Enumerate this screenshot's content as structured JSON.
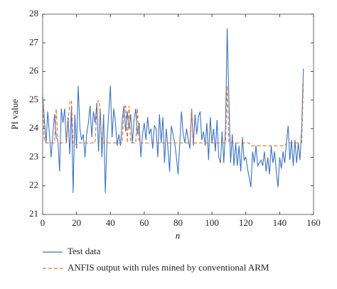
{
  "chart_data": {
    "type": "line",
    "xlabel": "n",
    "ylabel": "PI value",
    "xlim": [
      0,
      160
    ],
    "xticks": [
      0,
      20,
      40,
      60,
      80,
      100,
      120,
      140,
      160
    ],
    "ylim": [
      21,
      28
    ],
    "yticks": [
      21,
      22,
      23,
      24,
      25,
      26,
      27,
      28
    ],
    "x": [
      0,
      1,
      2,
      3,
      4,
      5,
      6,
      7,
      8,
      9,
      10,
      11,
      12,
      13,
      14,
      15,
      16,
      17,
      18,
      19,
      20,
      21,
      22,
      23,
      24,
      25,
      26,
      27,
      28,
      29,
      30,
      31,
      32,
      33,
      34,
      35,
      36,
      37,
      38,
      39,
      40,
      41,
      42,
      43,
      44,
      45,
      46,
      47,
      48,
      49,
      50,
      51,
      52,
      53,
      54,
      55,
      56,
      57,
      58,
      59,
      60,
      61,
      62,
      63,
      64,
      65,
      66,
      67,
      68,
      69,
      70,
      71,
      72,
      73,
      74,
      75,
      76,
      77,
      78,
      79,
      80,
      81,
      82,
      83,
      84,
      85,
      86,
      87,
      88,
      89,
      90,
      91,
      92,
      93,
      94,
      95,
      96,
      97,
      98,
      99,
      100,
      101,
      102,
      103,
      104,
      105,
      106,
      107,
      108,
      109,
      110,
      111,
      112,
      113,
      114,
      115,
      116,
      117,
      118,
      119,
      120,
      121,
      122,
      123,
      124,
      125,
      126,
      127,
      128,
      129,
      130,
      131,
      132,
      133,
      134,
      135,
      136,
      137,
      138,
      139,
      140,
      141,
      142,
      143,
      144,
      145,
      146,
      147,
      148,
      149,
      150,
      151,
      152,
      153,
      154
    ],
    "series": [
      {
        "name": "Test data",
        "color": "#3b72c4",
        "dash": false,
        "values": [
          25.2,
          24.3,
          23.5,
          24.6,
          23.8,
          23.0,
          23.8,
          24.5,
          23.7,
          23.6,
          22.5,
          24.7,
          24.2,
          24.7,
          23.5,
          24.4,
          23.1,
          24.8,
          21.75,
          24.5,
          23.3,
          25.5,
          24.0,
          23.6,
          23.8,
          23.0,
          23.8,
          24.2,
          24.8,
          23.7,
          24.6,
          24.2,
          24.9,
          23.2,
          24.7,
          23.0,
          24.5,
          21.75,
          23.6,
          24.5,
          25.5,
          23.7,
          24.7,
          24.2,
          23.4,
          23.8,
          23.4,
          24.3,
          24.8,
          23.9,
          24.6,
          24.0,
          24.5,
          23.5,
          24.3,
          24.7,
          23.8,
          24.2,
          23.0,
          23.8,
          24.2,
          23.6,
          24.4,
          23.8,
          24.0,
          23.3,
          24.1,
          24.0,
          23.0,
          24.5,
          23.5,
          24.4,
          22.8,
          24.0,
          23.3,
          22.5,
          24.1,
          23.8,
          23.5,
          23.0,
          22.4,
          23.5,
          24.6,
          23.8,
          23.5,
          24.0,
          23.6,
          23.3,
          24.7,
          23.4,
          24.5,
          23.8,
          24.4,
          24.6,
          23.6,
          23.9,
          23.4,
          24.2,
          22.9,
          24.4,
          23.5,
          24.0,
          23.2,
          24.3,
          23.0,
          22.8,
          23.9,
          22.8,
          24.0,
          27.5,
          25.0,
          22.8,
          23.8,
          22.7,
          23.5,
          22.7,
          23.4,
          22.5,
          23.7,
          22.9,
          23.0,
          22.6,
          22.3,
          21.95,
          23.2,
          22.8,
          23.4,
          22.7,
          22.8,
          22.9,
          22.7,
          23.2,
          22.5,
          23.0,
          22.4,
          23.4,
          22.8,
          23.2,
          22.5,
          21.95,
          23.0,
          22.6,
          23.2,
          22.8,
          23.5,
          24.1,
          22.9,
          23.6,
          22.7,
          23.6,
          22.8,
          23.5,
          22.9,
          24.0,
          26.1
        ]
      },
      {
        "name": "ANFIS output with rules mined by conventional ARM",
        "color": "#e8702a",
        "dash": true,
        "values": [
          24.9,
          23.6,
          23.5,
          23.5,
          23.5,
          23.5,
          23.5,
          23.5,
          24.7,
          23.5,
          23.5,
          23.5,
          23.5,
          23.5,
          23.5,
          24.2,
          24.9,
          25.0,
          23.5,
          23.5,
          23.4,
          23.5,
          23.5,
          23.5,
          23.5,
          23.5,
          23.5,
          23.5,
          23.5,
          23.5,
          23.5,
          23.5,
          24.8,
          25.0,
          24.6,
          23.5,
          23.5,
          23.5,
          23.5,
          23.5,
          23.5,
          23.5,
          23.5,
          23.5,
          23.5,
          23.5,
          23.5,
          23.5,
          24.7,
          24.8,
          23.5,
          24.8,
          23.5,
          23.5,
          23.5,
          23.5,
          24.7,
          23.5,
          23.5,
          23.5,
          23.5,
          23.5,
          23.5,
          23.5,
          23.5,
          23.5,
          23.5,
          23.5,
          23.5,
          23.5,
          23.5,
          23.5,
          23.5,
          23.5,
          23.5,
          23.5,
          23.5,
          23.5,
          23.5,
          23.5,
          23.5,
          23.5,
          23.5,
          23.5,
          23.5,
          23.5,
          23.5,
          23.5,
          24.7,
          23.5,
          23.5,
          23.5,
          23.5,
          23.5,
          23.5,
          23.5,
          23.5,
          23.5,
          23.5,
          23.5,
          23.5,
          23.5,
          23.5,
          23.5,
          23.5,
          23.5,
          23.5,
          23.5,
          23.5,
          25.5,
          23.5,
          23.5,
          23.5,
          23.5,
          23.5,
          23.5,
          23.5,
          23.5,
          23.5,
          23.5,
          23.5,
          23.5,
          23.5,
          23.4,
          23.4,
          23.4,
          23.4,
          23.4,
          23.4,
          23.4,
          23.4,
          23.4,
          23.4,
          23.4,
          23.4,
          23.4,
          23.4,
          23.4,
          23.4,
          23.4,
          23.4,
          23.4,
          23.4,
          23.4,
          23.5,
          23.5,
          23.5,
          23.5,
          23.5,
          23.5,
          23.5,
          23.5,
          23.5,
          23.5,
          25.6
        ]
      }
    ]
  }
}
